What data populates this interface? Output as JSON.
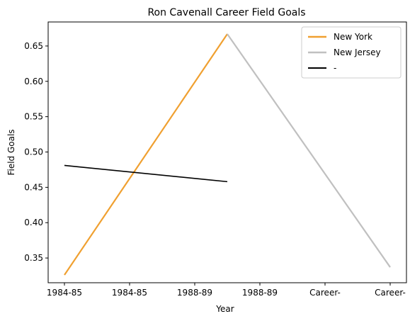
{
  "chart_data": {
    "type": "line",
    "title": "Ron Cavenall Career Field Goals",
    "xlabel": "Year",
    "ylabel": "Field Goals",
    "categories": [
      "1984-85",
      "1984-85",
      "1988-89",
      "1988-89",
      "Career-",
      "Career-"
    ],
    "ylim": [
      0.315,
      0.684
    ],
    "yticks": [
      0.35,
      0.4,
      0.45,
      0.5,
      0.55,
      0.6,
      0.65
    ],
    "ytick_labels": [
      "0.35",
      "0.40",
      "0.45",
      "0.50",
      "0.55",
      "0.60",
      "0.65"
    ],
    "grid": false,
    "legend_position": "top-right",
    "series": [
      {
        "name": "New York",
        "color": "#f0a030",
        "points": [
          [
            0,
            0.326
          ],
          [
            2.5,
            0.667
          ]
        ]
      },
      {
        "name": "New Jersey",
        "color": "#c0c0c0",
        "points": [
          [
            2.5,
            0.667
          ],
          [
            5,
            0.337
          ]
        ]
      },
      {
        "name": "-",
        "color": "#000000",
        "points": [
          [
            0,
            0.481
          ],
          [
            2.5,
            0.458
          ]
        ]
      }
    ]
  }
}
